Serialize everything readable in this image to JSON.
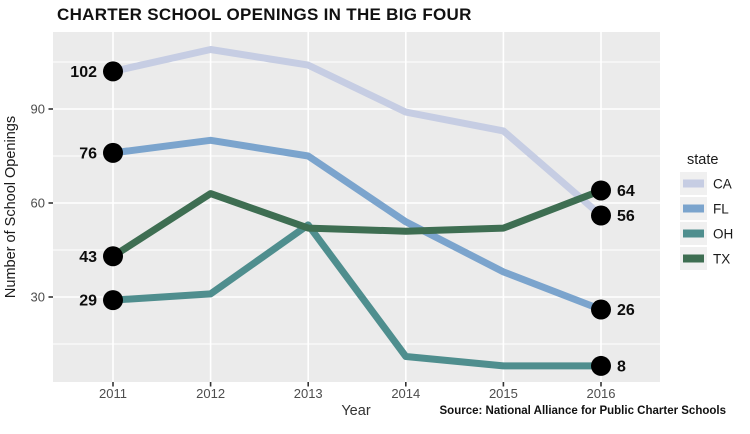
{
  "title": "CHARTER SCHOOL OPENINGS IN THE BIG FOUR",
  "source_note": "Source: National Alliance for Public Charter Schools",
  "chart_data": {
    "type": "line",
    "title": "CHARTER SCHOOL OPENINGS IN THE BIG FOUR",
    "xlabel": "Year",
    "ylabel": "Number of School Openings",
    "x": [
      2011,
      2012,
      2013,
      2014,
      2015,
      2016
    ],
    "x_tick_labels": [
      "2011",
      "2012",
      "2013",
      "2014",
      "2015",
      "2016"
    ],
    "series": [
      {
        "name": "CA",
        "color": "#c6cde3",
        "values": [
          102,
          109,
          104,
          89,
          83,
          56
        ]
      },
      {
        "name": "FL",
        "color": "#7ba4cd",
        "values": [
          76,
          80,
          75,
          54,
          38,
          26
        ]
      },
      {
        "name": "OH",
        "color": "#4f8e8e",
        "values": [
          29,
          31,
          53,
          11,
          8,
          8
        ]
      },
      {
        "name": "TX",
        "color": "#3e6e52",
        "values": [
          43,
          63,
          52,
          51,
          52,
          64
        ]
      }
    ],
    "endpoint_labels": {
      "left": [
        {
          "series": "CA",
          "text": "102"
        },
        {
          "series": "FL",
          "text": "76"
        },
        {
          "series": "TX",
          "text": "43"
        },
        {
          "series": "OH",
          "text": "29"
        }
      ],
      "right": [
        {
          "series": "TX",
          "text": "64"
        },
        {
          "series": "CA",
          "text": "56"
        },
        {
          "series": "FL",
          "text": "26"
        },
        {
          "series": "OH",
          "text": "8"
        }
      ]
    },
    "y_ticks": [
      30,
      60,
      90
    ],
    "y_minor_gridlines": [
      15,
      45,
      75,
      105
    ],
    "ylim": [
      3,
      115
    ],
    "grid": true,
    "legend_title": "state",
    "legend_entries": [
      "CA",
      "FL",
      "OH",
      "TX"
    ],
    "legend_position": "right",
    "panel_bg": "#ebebeb",
    "gridline_color": "#ffffff",
    "point_color": "#000000",
    "axis_text_color": "#4d4d4d"
  }
}
